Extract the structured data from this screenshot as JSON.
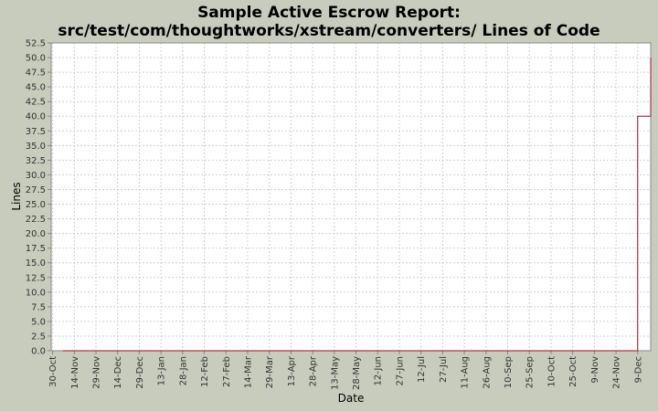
{
  "chart_data": {
    "type": "line",
    "title": [
      "Sample Active Escrow Report:",
      "src/test/com/thoughtworks/xstream/converters/ Lines of Code"
    ],
    "x_label": "Date",
    "y_label": "Lines",
    "step": true,
    "grid": true,
    "xlim": [
      -1,
      414
    ],
    "xticks": [
      {
        "value": 0,
        "label": "30-Oct"
      },
      {
        "value": 15,
        "label": "14-Nov"
      },
      {
        "value": 30,
        "label": "29-Nov"
      },
      {
        "value": 45,
        "label": "14-Dec"
      },
      {
        "value": 60,
        "label": "29-Dec"
      },
      {
        "value": 75,
        "label": "13-Jan"
      },
      {
        "value": 90,
        "label": "28-Jan"
      },
      {
        "value": 105,
        "label": "12-Feb"
      },
      {
        "value": 120,
        "label": "27-Feb"
      },
      {
        "value": 135,
        "label": "14-Mar"
      },
      {
        "value": 150,
        "label": "29-Mar"
      },
      {
        "value": 165,
        "label": "13-Apr"
      },
      {
        "value": 180,
        "label": "28-Apr"
      },
      {
        "value": 195,
        "label": "13-May"
      },
      {
        "value": 210,
        "label": "28-May"
      },
      {
        "value": 225,
        "label": "12-Jun"
      },
      {
        "value": 240,
        "label": "27-Jun"
      },
      {
        "value": 255,
        "label": "12-Jul"
      },
      {
        "value": 270,
        "label": "27-Jul"
      },
      {
        "value": 285,
        "label": "11-Aug"
      },
      {
        "value": 300,
        "label": "26-Aug"
      },
      {
        "value": 315,
        "label": "10-Sep"
      },
      {
        "value": 330,
        "label": "25-Sep"
      },
      {
        "value": 345,
        "label": "10-Oct"
      },
      {
        "value": 360,
        "label": "25-Oct"
      },
      {
        "value": 375,
        "label": "9-Nov"
      },
      {
        "value": 390,
        "label": "24-Nov"
      },
      {
        "value": 405,
        "label": "9-Dec"
      }
    ],
    "ylim": [
      0,
      52.5
    ],
    "yticks": [
      {
        "value": 0,
        "label": "0.0"
      },
      2.5,
      {
        "value": 5,
        "label": "5.0"
      },
      7.5,
      {
        "value": 10,
        "label": "10.0"
      },
      12.5,
      {
        "value": 15,
        "label": "15.0"
      },
      17.5,
      {
        "value": 20,
        "label": "20.0"
      },
      22.5,
      {
        "value": 25,
        "label": "25.0"
      },
      27.5,
      {
        "value": 30,
        "label": "30.0"
      },
      32.5,
      {
        "value": 35,
        "label": "35.0"
      },
      37.5,
      {
        "value": 40,
        "label": "40.0"
      },
      42.5,
      {
        "value": 45,
        "label": "45.0"
      },
      47.5,
      {
        "value": 50,
        "label": "50.0"
      },
      52.5
    ],
    "series": [
      {
        "name": "Lines",
        "color": "#a01020",
        "x": [
          7,
          405,
          414
        ],
        "values": [
          0,
          40,
          50
        ]
      }
    ]
  }
}
